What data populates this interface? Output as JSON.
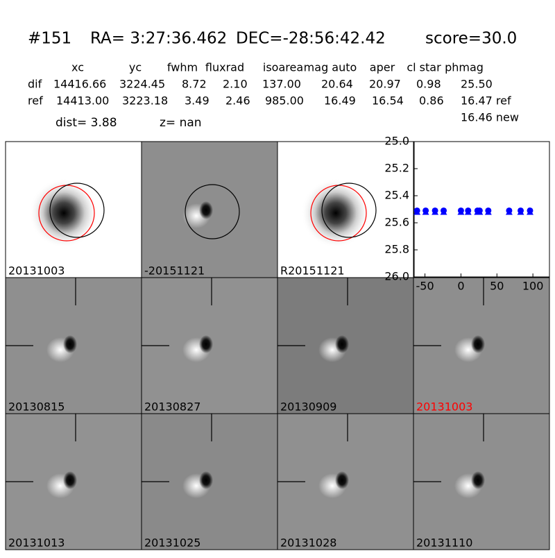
{
  "header": {
    "id": "#151",
    "ra": "RA= 3:27:36.462",
    "dec": "DEC=-28:56:42.42",
    "score": "score=30.0"
  },
  "table": {
    "columns": [
      "xc",
      "yc",
      "fwhm",
      "fluxrad",
      "isoarea",
      "mag auto",
      "aper",
      "cl star",
      "phmag"
    ],
    "rows": [
      [
        "dif",
        "14416.66",
        "3224.45",
        "8.72",
        "2.10",
        "137.00",
        "20.64",
        "20.97",
        "0.98",
        "25.50"
      ],
      [
        "ref",
        "14413.00",
        "3223.18",
        "3.49",
        "2.46",
        "985.00",
        "16.49",
        "16.54",
        "0.86",
        "16.47 ref"
      ]
    ],
    "extra": "16.46 new"
  },
  "info": {
    "dist": "dist=  3.88",
    "z": "z=   nan"
  },
  "panels": [
    {
      "label": "20131003"
    },
    {
      "label": "-20151121"
    },
    {
      "label": "R20151121"
    },
    {
      "label": "20130815"
    },
    {
      "label": "20130827"
    },
    {
      "label": "20130909"
    },
    {
      "label": "20131003",
      "label_color": "#ff0000"
    },
    {
      "label": "20131013"
    },
    {
      "label": "20131025"
    },
    {
      "label": "20131028"
    },
    {
      "label": "20131110"
    }
  ],
  "chart_data": {
    "type": "scatter",
    "color": "#0000ff",
    "x": [
      -61,
      -49,
      -36,
      -24,
      0,
      10,
      23,
      26,
      38,
      67,
      83,
      96
    ],
    "values": [
      25.51,
      25.51,
      25.51,
      25.51,
      25.51,
      25.51,
      25.51,
      25.51,
      25.51,
      25.51,
      25.51,
      25.51
    ],
    "xlim": [
      -65,
      123
    ],
    "ylim": [
      26.0,
      25.0
    ],
    "xticks": [
      -50,
      0,
      50,
      100
    ],
    "yticks": [
      {
        "value": 25.0,
        "label": "25.0"
      },
      {
        "value": 25.2,
        "label": "25.2"
      },
      {
        "value": 25.4,
        "label": "25.4"
      },
      {
        "value": 25.6,
        "label": "25.6"
      },
      {
        "value": 25.8,
        "label": "25.8"
      },
      {
        "value": 26.0,
        "label": "26.0"
      }
    ]
  }
}
